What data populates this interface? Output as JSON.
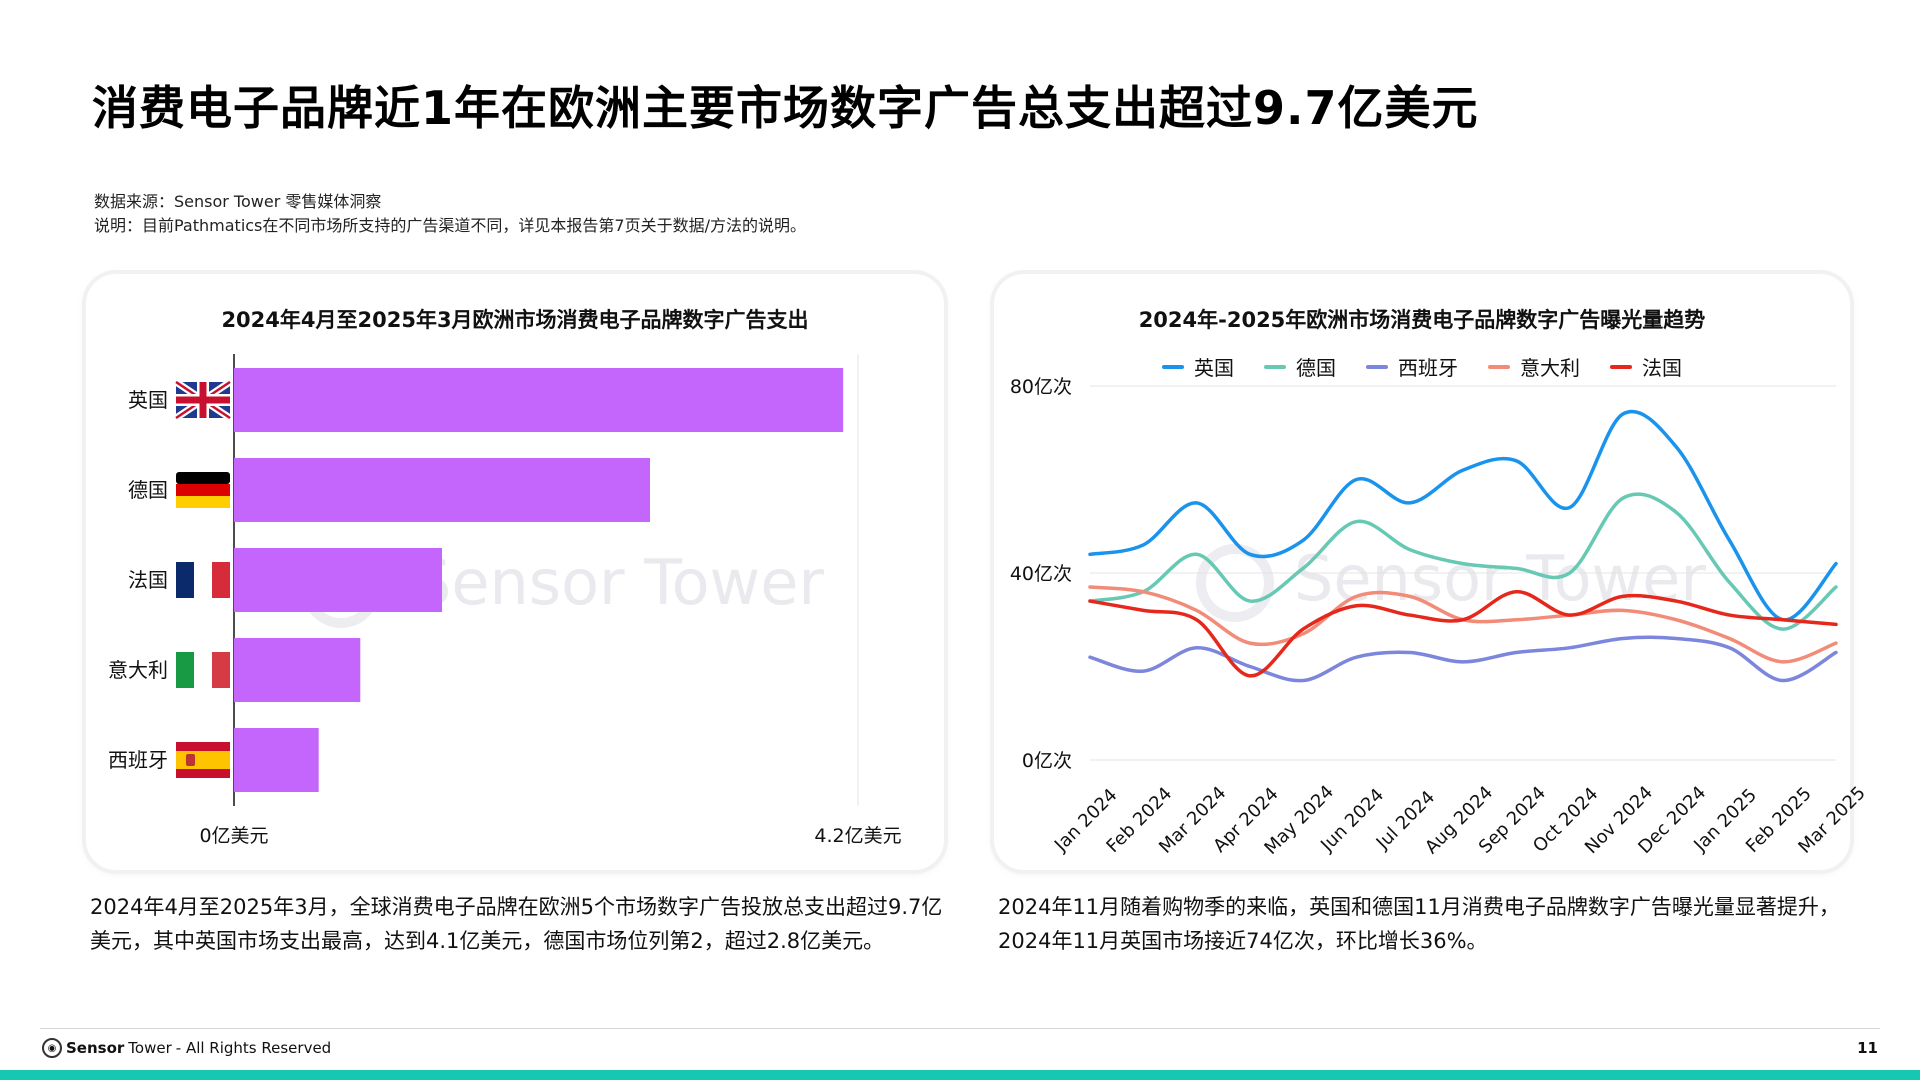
{
  "page": {
    "title": "消费电子品牌近1年在欧洲主要市场数字广告总支出超过9.7亿美元",
    "source_line": "数据来源：Sensor Tower 零售媒体洞察",
    "note_line": "说明：目前Pathmatics在不同市场所支持的广告渠道不同，详见本报告第7页关于数据/方法的说明。",
    "watermark": "Sensor Tower",
    "left_caption": "2024年4月至2025年3月，全球消费电子品牌在欧洲5个市场数字广告投放总支出超过9.7亿美元，其中英国市场支出最高，达到4.1亿美元，德国市场位列第2，超过2.8亿美元。",
    "right_caption": "2024年11月随着购物季的来临，英国和德国11月消费电子品牌数字广告曝光量显著提升，2024年11月英国市场接近74亿次，环比增长36%。"
  },
  "footer": {
    "brand_bold": "Sensor",
    "brand_light": "Tower",
    "rights": "- All Rights Reserved",
    "page_number": "11"
  },
  "colors": {
    "bar": "#c466fb",
    "uk": "#1a93ec",
    "de": "#67c8b4",
    "es": "#7b86dc",
    "it": "#f28b78",
    "fr": "#e6281c",
    "bottom_bar": "#16c7b4"
  },
  "chart_data": [
    {
      "type": "bar",
      "orientation": "horizontal",
      "title": "2024年4月至2025年3月欧洲市场消费电子品牌数字广告支出",
      "categories": [
        "英国",
        "德国",
        "法国",
        "意大利",
        "西班牙"
      ],
      "category_icons": [
        "uk-flag-icon",
        "germany-flag-icon",
        "france-flag-icon",
        "italy-flag-icon",
        "spain-flag-icon"
      ],
      "values": [
        4.1,
        2.8,
        1.4,
        0.85,
        0.57
      ],
      "unit": "亿美元",
      "xlim": [
        0,
        4.2
      ],
      "tick_labels": [
        "0亿美元",
        "4.2亿美元"
      ],
      "grid": false
    },
    {
      "type": "line",
      "title": "2024年-2025年欧洲市场消费电子品牌数字广告曝光量趋势",
      "x": [
        "Jan 2024",
        "Feb 2024",
        "Mar 2024",
        "Apr 2024",
        "May 2024",
        "Jun 2024",
        "Jul 2024",
        "Aug 2024",
        "Sep 2024",
        "Oct 2024",
        "Nov 2024",
        "Dec 2024",
        "Jan 2025",
        "Feb 2025",
        "Mar 2025"
      ],
      "ylim": [
        0,
        80
      ],
      "y_ticks": [
        0,
        40,
        80
      ],
      "y_tick_labels": [
        "0亿次",
        "40亿次",
        "80亿次"
      ],
      "grid": true,
      "legend_position": "top",
      "series": [
        {
          "name": "英国",
          "values": [
            44,
            46,
            55,
            44,
            47,
            60,
            55,
            62,
            64,
            54,
            74,
            67,
            47,
            30,
            42
          ]
        },
        {
          "name": "德国",
          "values": [
            34,
            36,
            44,
            34,
            41,
            51,
            45,
            42,
            41,
            40,
            56,
            53,
            38,
            28,
            37
          ]
        },
        {
          "name": "西班牙",
          "values": [
            22,
            19,
            24,
            20,
            17,
            22,
            23,
            21,
            23,
            24,
            26,
            26,
            24,
            17,
            23
          ]
        },
        {
          "name": "意大利",
          "values": [
            37,
            36,
            32,
            25,
            27,
            35,
            35,
            30,
            30,
            31,
            32,
            30,
            26,
            21,
            25
          ]
        },
        {
          "name": "法国",
          "values": [
            34,
            32,
            30,
            18,
            28,
            33,
            31,
            30,
            36,
            31,
            35,
            34,
            31,
            30,
            29
          ]
        }
      ]
    }
  ]
}
